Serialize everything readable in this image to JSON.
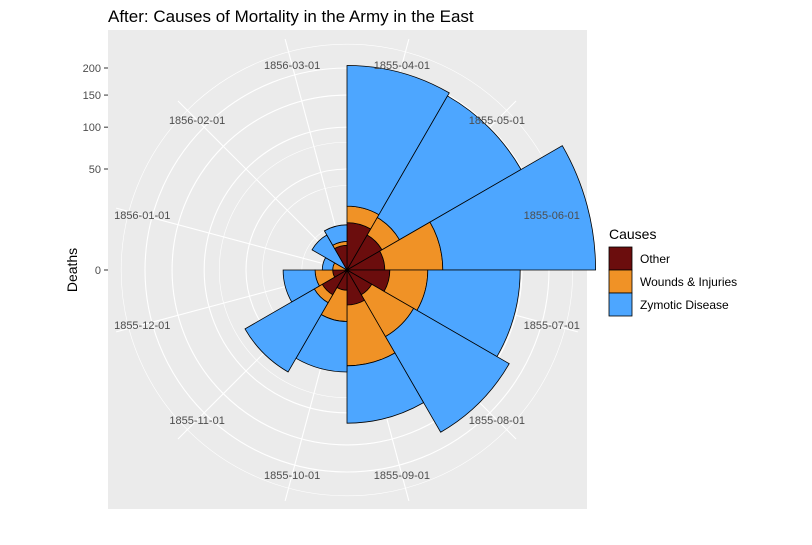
{
  "chart_data": {
    "type": "polar-area",
    "title": "After: Causes of Mortality in the Army in the East",
    "ylabel": "Deaths",
    "y_ticks": [
      0,
      50,
      100,
      150,
      200
    ],
    "stacked": true,
    "months": [
      "1855-04-01",
      "1855-05-01",
      "1855-06-01",
      "1855-07-01",
      "1855-08-01",
      "1855-09-01",
      "1855-10-01",
      "1855-11-01",
      "1855-12-01",
      "1856-01-01",
      "1856-02-01",
      "1856-03-01"
    ],
    "series": [
      {
        "name": "Other",
        "color": "#6b0d0d",
        "values": [
          11,
          8,
          7,
          9,
          4,
          6,
          2,
          4,
          1,
          0,
          0,
          3
        ]
      },
      {
        "name": "Wounds & Injuries",
        "color": "#f09226",
        "values": [
          9,
          10,
          38,
          23,
          25,
          39,
          11,
          3,
          4,
          1,
          0,
          1
        ]
      },
      {
        "name": "Zymotic Disease",
        "color": "#4da6ff",
        "values": [
          185,
          180,
          258,
          115,
          143,
          70,
          38,
          61,
          15,
          2,
          8,
          6
        ]
      }
    ],
    "legend": {
      "title": "Causes",
      "position": "right"
    }
  }
}
